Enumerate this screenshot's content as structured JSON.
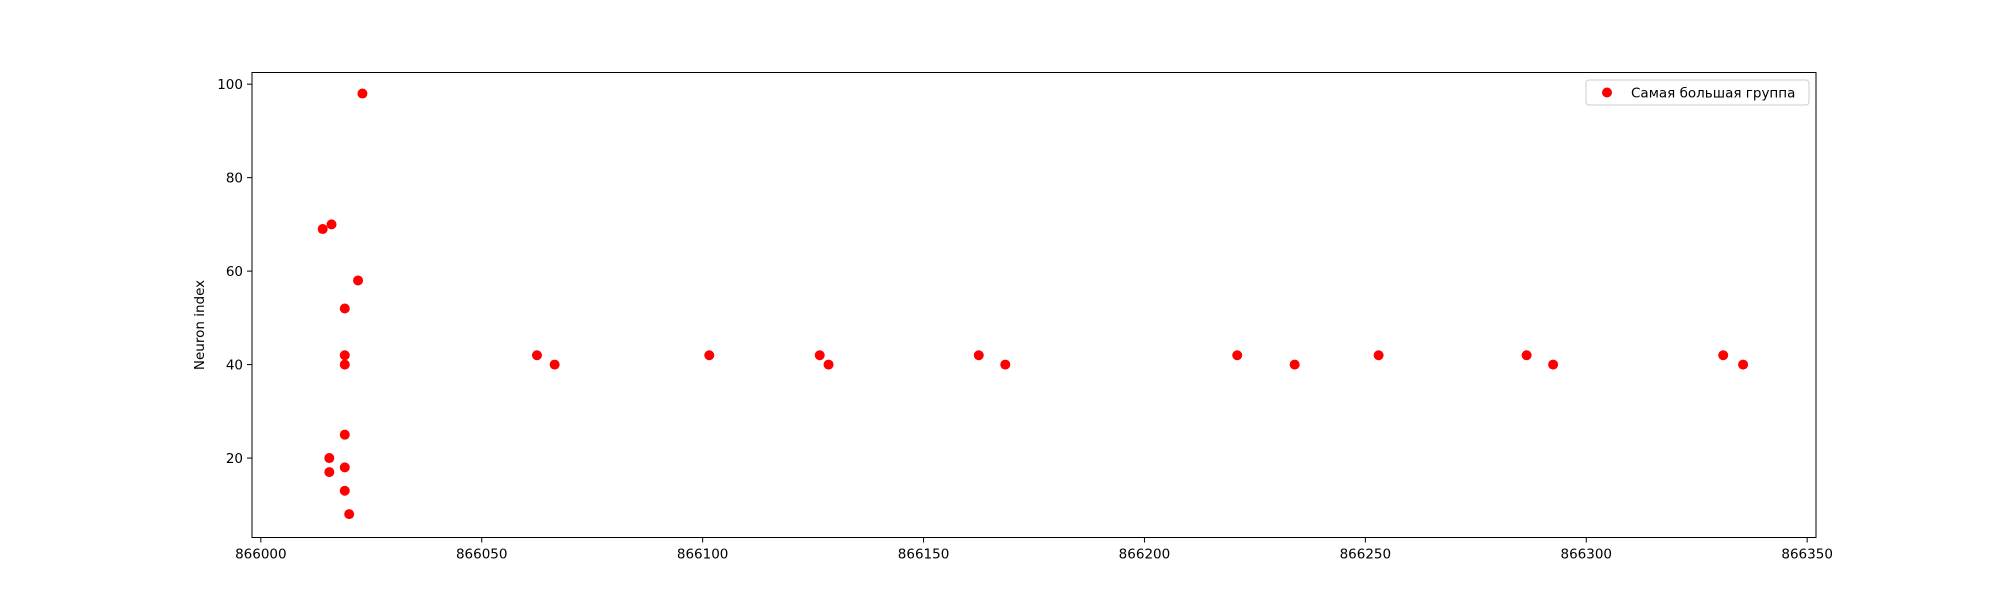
{
  "chart_data": {
    "type": "scatter",
    "title": "",
    "xlabel": "",
    "ylabel": "Neuron index",
    "xlim": [
      865998,
      866352
    ],
    "ylim": [
      3,
      102.5
    ],
    "xticks": [
      866000,
      866050,
      866100,
      866150,
      866200,
      866250,
      866300,
      866350
    ],
    "yticks": [
      20,
      40,
      60,
      80,
      100
    ],
    "grid": false,
    "legend_position": "top-right",
    "series": [
      {
        "name": "Самая большая группа",
        "color": "#ff0000",
        "marker": "circle",
        "points": [
          {
            "x": 866014,
            "y": 69
          },
          {
            "x": 866016,
            "y": 70
          },
          {
            "x": 866023,
            "y": 98
          },
          {
            "x": 866022,
            "y": 58
          },
          {
            "x": 866019,
            "y": 52
          },
          {
            "x": 866019,
            "y": 42
          },
          {
            "x": 866019,
            "y": 40
          },
          {
            "x": 866019,
            "y": 25
          },
          {
            "x": 866015.5,
            "y": 20
          },
          {
            "x": 866019,
            "y": 18
          },
          {
            "x": 866015.5,
            "y": 17
          },
          {
            "x": 866019,
            "y": 13
          },
          {
            "x": 866020,
            "y": 8
          },
          {
            "x": 866062.5,
            "y": 42
          },
          {
            "x": 866066.5,
            "y": 40
          },
          {
            "x": 866101.5,
            "y": 42
          },
          {
            "x": 866126.5,
            "y": 42
          },
          {
            "x": 866128.5,
            "y": 40
          },
          {
            "x": 866162.5,
            "y": 42
          },
          {
            "x": 866168.5,
            "y": 40
          },
          {
            "x": 866221,
            "y": 42
          },
          {
            "x": 866234,
            "y": 40
          },
          {
            "x": 866253,
            "y": 42
          },
          {
            "x": 866286.5,
            "y": 42
          },
          {
            "x": 866292.5,
            "y": 40
          },
          {
            "x": 866331,
            "y": 42
          },
          {
            "x": 866335.5,
            "y": 40
          }
        ]
      }
    ]
  }
}
